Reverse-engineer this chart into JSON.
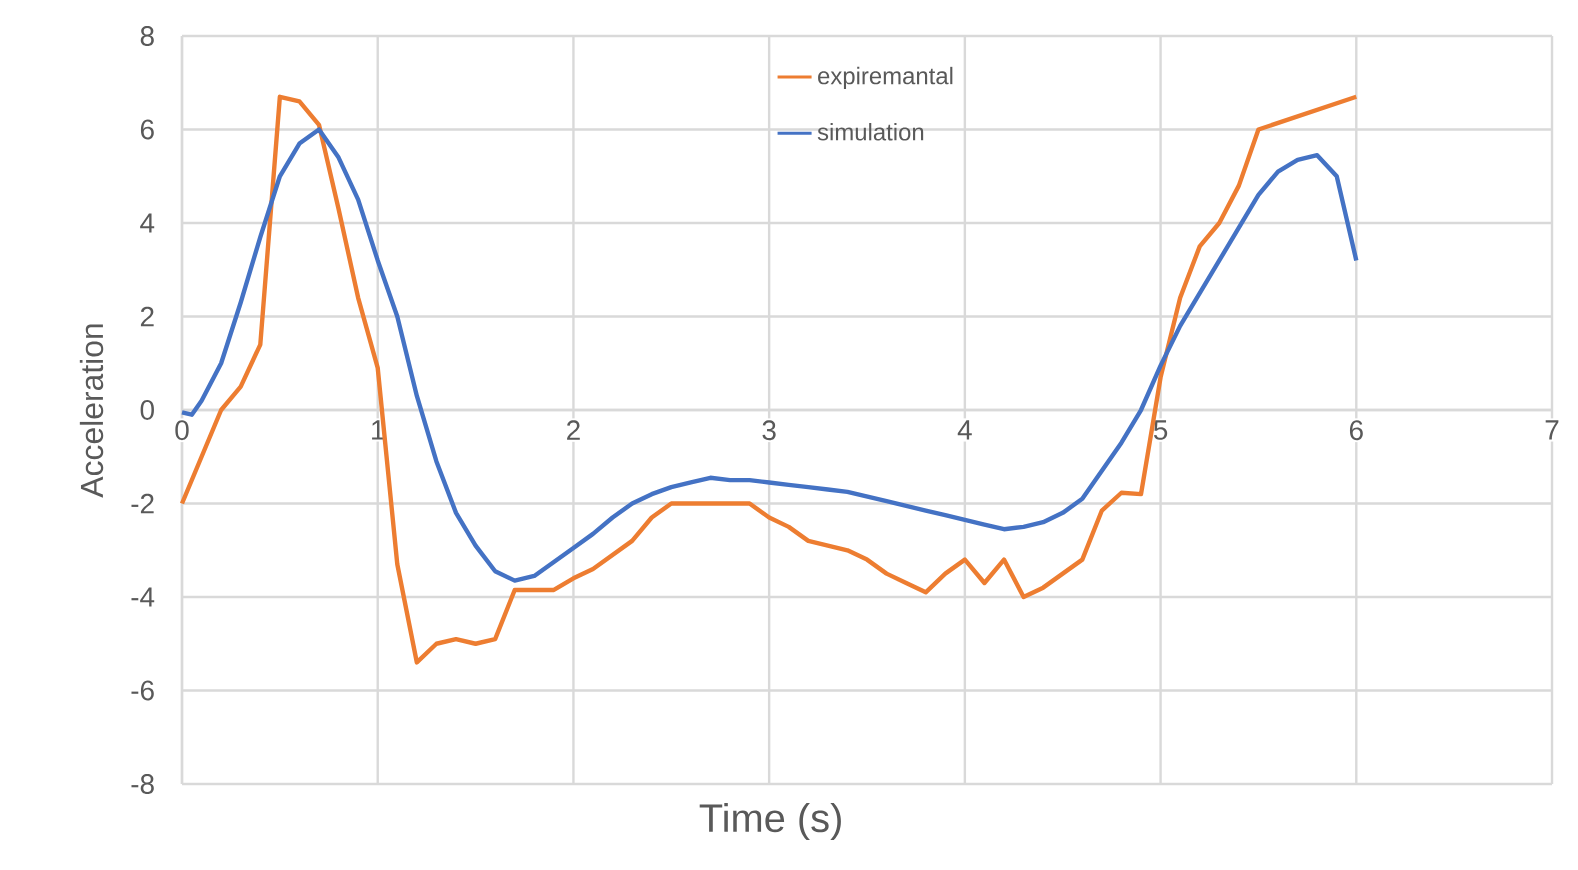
{
  "chart_data": {
    "type": "line",
    "xlabel": "Time (s)",
    "ylabel": "Acceleration",
    "xlim": [
      0,
      7
    ],
    "xticks": [
      0,
      1,
      2,
      3,
      4,
      5,
      6,
      7
    ],
    "ylim": [
      -8,
      8
    ],
    "yticks": [
      -8,
      -6,
      -4,
      -2,
      0,
      2,
      4,
      6,
      8
    ],
    "grid": true,
    "legend": "top",
    "series": [
      {
        "name": "expiremantal",
        "color": "#ed7d31",
        "x": [
          0,
          0.1,
          0.2,
          0.3,
          0.4,
          0.5,
          0.6,
          0.7,
          0.8,
          0.9,
          1.0,
          1.1,
          1.2,
          1.3,
          1.4,
          1.5,
          1.6,
          1.7,
          1.8,
          1.9,
          2.0,
          2.1,
          2.2,
          2.3,
          2.4,
          2.5,
          2.6,
          2.7,
          2.8,
          2.9,
          3.0,
          3.1,
          3.2,
          3.3,
          3.4,
          3.5,
          3.6,
          3.7,
          3.8,
          3.9,
          4.0,
          4.1,
          4.2,
          4.3,
          4.4,
          4.5,
          4.6,
          4.7,
          4.8,
          4.9,
          5.0,
          5.1,
          5.2,
          5.3,
          5.4,
          5.5,
          6.0
        ],
        "values": [
          -2.0,
          -1.0,
          0.0,
          0.5,
          1.4,
          6.7,
          6.6,
          6.1,
          4.3,
          2.4,
          0.9,
          -3.3,
          -5.4,
          -5.0,
          -4.9,
          -5.0,
          -4.9,
          -3.85,
          -3.85,
          -3.85,
          -3.6,
          -3.4,
          -3.1,
          -2.8,
          -2.3,
          -2.0,
          -2.0,
          -2.0,
          -2.0,
          -2.0,
          -2.3,
          -2.5,
          -2.8,
          -2.9,
          -3.0,
          -3.2,
          -3.5,
          -3.7,
          -3.9,
          -3.5,
          -3.2,
          -3.7,
          -3.2,
          -4.0,
          -3.8,
          -3.5,
          -3.2,
          -2.15,
          -1.77,
          -1.8,
          0.7,
          2.4,
          3.5,
          4.0,
          4.8,
          6.0,
          6.7
        ]
      },
      {
        "name": "simulation",
        "color": "#4472c4",
        "x": [
          0,
          0.05,
          0.1,
          0.2,
          0.3,
          0.4,
          0.5,
          0.6,
          0.7,
          0.8,
          0.9,
          1.0,
          1.1,
          1.2,
          1.3,
          1.4,
          1.5,
          1.6,
          1.7,
          1.8,
          1.9,
          2.0,
          2.1,
          2.2,
          2.3,
          2.4,
          2.5,
          2.6,
          2.7,
          2.8,
          2.9,
          3.0,
          3.1,
          3.2,
          3.3,
          3.4,
          3.5,
          3.6,
          3.7,
          3.8,
          3.9,
          4.0,
          4.1,
          4.2,
          4.3,
          4.4,
          4.5,
          4.6,
          4.7,
          4.8,
          4.9,
          5.0,
          5.1,
          5.2,
          5.3,
          5.4,
          5.5,
          5.6,
          5.7,
          5.8,
          5.9,
          6.0
        ],
        "values": [
          -0.05,
          -0.1,
          0.2,
          1.0,
          2.3,
          3.7,
          5.0,
          5.7,
          6.0,
          5.4,
          4.5,
          3.2,
          2.0,
          0.3,
          -1.1,
          -2.2,
          -2.9,
          -3.45,
          -3.65,
          -3.55,
          -3.25,
          -2.95,
          -2.65,
          -2.3,
          -2.0,
          -1.8,
          -1.65,
          -1.55,
          -1.45,
          -1.5,
          -1.5,
          -1.55,
          -1.6,
          -1.65,
          -1.7,
          -1.75,
          -1.85,
          -1.95,
          -2.05,
          -2.15,
          -2.25,
          -2.35,
          -2.45,
          -2.55,
          -2.5,
          -2.4,
          -2.2,
          -1.9,
          -1.3,
          -0.7,
          0.0,
          0.95,
          1.8,
          2.5,
          3.2,
          3.9,
          4.6,
          5.1,
          5.35,
          5.45,
          5.0,
          3.2
        ]
      }
    ]
  }
}
